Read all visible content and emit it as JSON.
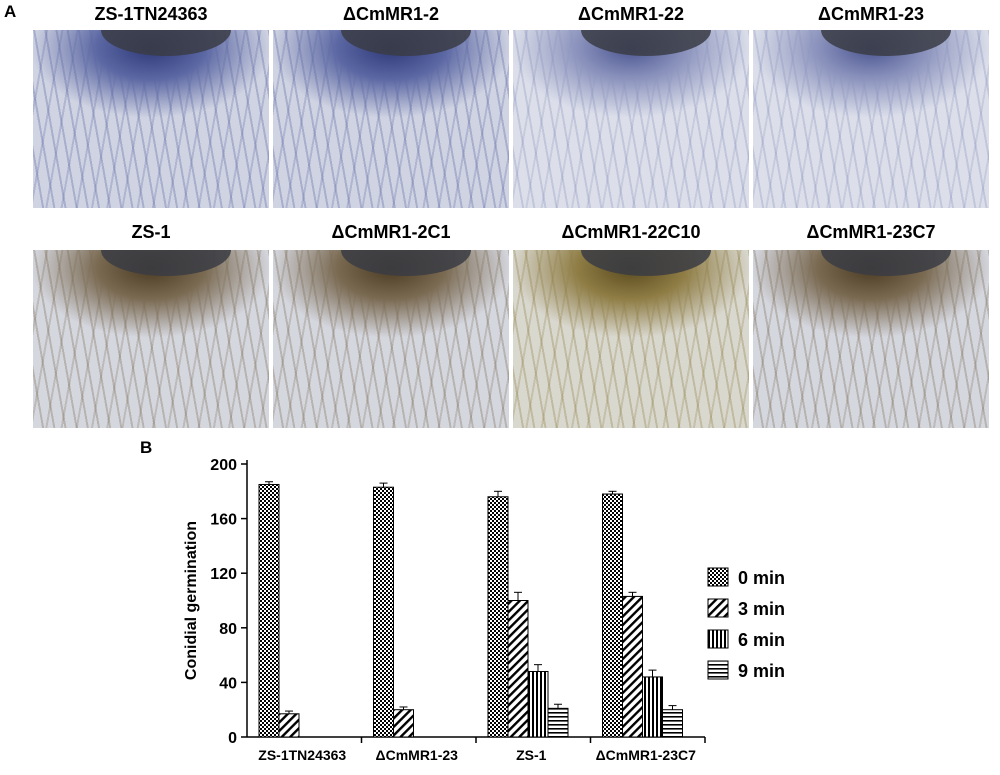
{
  "panel_a": {
    "letter": "A",
    "images": [
      {
        "label": "ZS-1TN24363",
        "stain": "blue"
      },
      {
        "label": "ΔCmMR1-2",
        "stain": "blue"
      },
      {
        "label": "ΔCmMR1-22",
        "stain": "blue-light"
      },
      {
        "label": "ΔCmMR1-23",
        "stain": "blue-light"
      },
      {
        "label": "ZS-1",
        "stain": "brown"
      },
      {
        "label": "ΔCmMR1-2C1",
        "stain": "brown"
      },
      {
        "label": "ΔCmMR1-22C10",
        "stain": "brown-olive"
      },
      {
        "label": "ΔCmMR1-23C7",
        "stain": "brown"
      }
    ]
  },
  "panel_b": {
    "letter": "B"
  },
  "chart_data": {
    "type": "bar",
    "categories": [
      "ZS-1TN24363",
      "ΔCmMR1-23",
      "ZS-1",
      "ΔCmMR1-23C7"
    ],
    "ylabel": "Conidial germination",
    "xlabel": "",
    "ylim": [
      0,
      200
    ],
    "yticks": [
      0,
      40,
      80,
      120,
      160,
      200
    ],
    "legend_position": "right",
    "series": [
      {
        "name": "0 min",
        "pattern": "dots",
        "values": [
          185,
          183,
          176,
          178
        ],
        "errors": [
          2,
          3,
          4,
          2
        ]
      },
      {
        "name": "3 min",
        "pattern": "diagonal",
        "values": [
          17,
          20,
          100,
          103
        ],
        "errors": [
          2,
          2,
          6,
          3
        ]
      },
      {
        "name": "6 min",
        "pattern": "vertical",
        "values": [
          0,
          0,
          48,
          44
        ],
        "errors": [
          0,
          0,
          5,
          5
        ]
      },
      {
        "name": "9 min",
        "pattern": "horizontal",
        "values": [
          0,
          0,
          21,
          20
        ],
        "errors": [
          0,
          0,
          3,
          3
        ]
      }
    ]
  }
}
